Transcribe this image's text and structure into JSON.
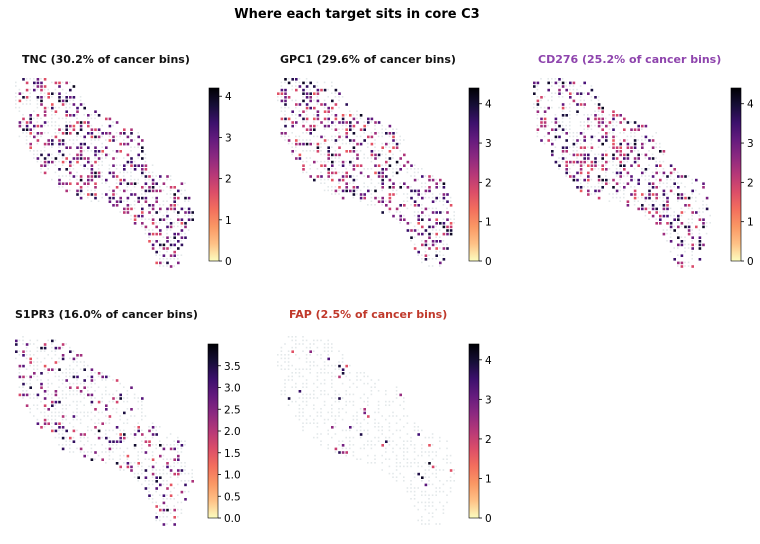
{
  "title": "Where each target sits in core C3",
  "chart_data": [
    {
      "type": "heatmap",
      "title": "TNC  (30.2% of cancer bins)",
      "title_color": "#111111",
      "colorbar": {
        "min": 0,
        "max": 4.2,
        "ticks": [
          0,
          1,
          2,
          3,
          4
        ],
        "tick_labels": [
          "0",
          "1",
          "2",
          "3",
          "4"
        ],
        "colormap": "magma_r"
      },
      "value_range": [
        0,
        4.2
      ],
      "positive_fraction": 0.302
    },
    {
      "type": "heatmap",
      "title": "GPC1  (29.6% of cancer bins)",
      "title_color": "#111111",
      "colorbar": {
        "min": 0,
        "max": 4.4,
        "ticks": [
          0,
          1,
          2,
          3,
          4
        ],
        "tick_labels": [
          "0",
          "1",
          "2",
          "3",
          "4"
        ],
        "colormap": "magma_r"
      },
      "value_range": [
        0,
        4.4
      ],
      "positive_fraction": 0.296
    },
    {
      "type": "heatmap",
      "title": "CD276  (25.2% of cancer bins)",
      "title_color": "#8e44ad",
      "colorbar": {
        "min": 0,
        "max": 4.4,
        "ticks": [
          0,
          1,
          2,
          3,
          4
        ],
        "tick_labels": [
          "0",
          "1",
          "2",
          "3",
          "4"
        ],
        "colormap": "magma_r"
      },
      "value_range": [
        0,
        4.4
      ],
      "positive_fraction": 0.252
    },
    {
      "type": "heatmap",
      "title": "S1PR3  (16.0% of cancer bins)",
      "title_color": "#111111",
      "colorbar": {
        "min": 0,
        "max": 4.0,
        "ticks": [
          0,
          0.5,
          1,
          1.5,
          2,
          2.5,
          3,
          3.5
        ],
        "tick_labels": [
          "0.0",
          "0.5",
          "1.0",
          "1.5",
          "2.0",
          "2.5",
          "3.0",
          "3.5"
        ],
        "colormap": "magma_r"
      },
      "value_range": [
        0,
        4.0
      ],
      "positive_fraction": 0.16
    },
    {
      "type": "heatmap",
      "title": "FAP  (2.5% of cancer bins)",
      "title_color": "#c0392b",
      "colorbar": {
        "min": 0,
        "max": 4.4,
        "ticks": [
          0,
          1,
          2,
          3,
          4
        ],
        "tick_labels": [
          "0",
          "1",
          "2",
          "3",
          "4"
        ],
        "colormap": "magma_r"
      },
      "value_range": [
        0,
        4.4
      ],
      "positive_fraction": 0.025
    }
  ]
}
